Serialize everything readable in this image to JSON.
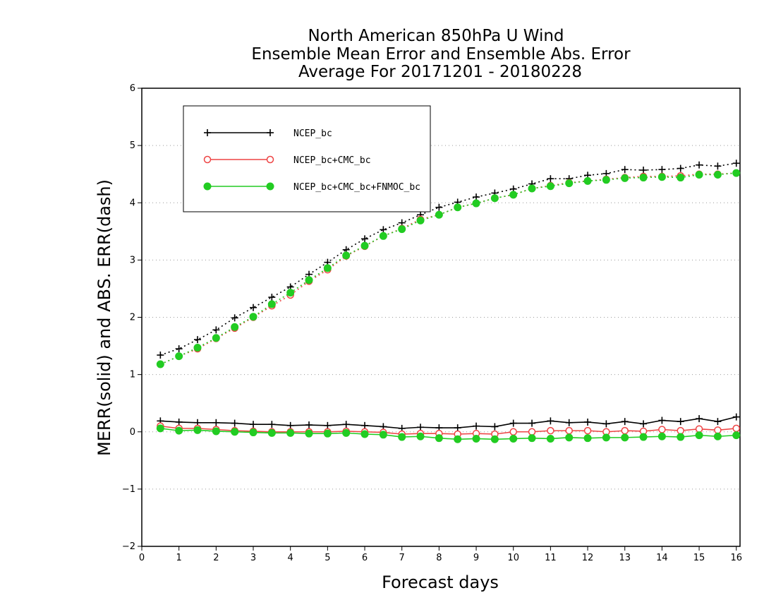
{
  "chart_data": {
    "type": "line",
    "title": [
      "North American 850hPa U Wind",
      "Ensemble Mean Error and Ensemble Abs. Error",
      "Average For 20171201 - 20180228"
    ],
    "xlabel": "Forecast days",
    "ylabel": "MERR(solid) and ABS. ERR(dash)",
    "xlim": [
      0,
      16.1
    ],
    "ylim": [
      -2,
      6
    ],
    "xticks": [
      0,
      1,
      2,
      3,
      4,
      5,
      6,
      7,
      8,
      9,
      10,
      11,
      12,
      13,
      14,
      15,
      16
    ],
    "yticks": [
      -2,
      -1,
      0,
      1,
      2,
      3,
      4,
      5,
      6
    ],
    "xtick_labels": [
      "0",
      "1",
      "2",
      "3",
      "4",
      "5",
      "6",
      "7",
      "8",
      "9",
      "10",
      "11",
      "12",
      "13",
      "14",
      "15",
      "16"
    ],
    "ytick_labels": [
      "−2",
      "−1",
      "0",
      "1",
      "2",
      "3",
      "4",
      "5",
      "6"
    ],
    "grid": "horizontal dotted",
    "legend_position": "top-left",
    "x": [
      0.5,
      1.0,
      1.5,
      2.0,
      2.5,
      3.0,
      3.5,
      4.0,
      4.5,
      5.0,
      5.5,
      6.0,
      6.5,
      7.0,
      7.5,
      8.0,
      8.5,
      9.0,
      9.5,
      10.0,
      10.5,
      11.0,
      11.5,
      12.0,
      12.5,
      13.0,
      13.5,
      14.0,
      14.5,
      15.0,
      15.5,
      16.0
    ],
    "series": [
      {
        "name": "NCEP_bc",
        "color": "#000000",
        "marker": "plus",
        "merr": [
          0.19,
          0.17,
          0.16,
          0.16,
          0.15,
          0.13,
          0.13,
          0.11,
          0.12,
          0.11,
          0.13,
          0.11,
          0.09,
          0.06,
          0.08,
          0.07,
          0.07,
          0.1,
          0.09,
          0.15,
          0.15,
          0.19,
          0.16,
          0.17,
          0.14,
          0.18,
          0.14,
          0.2,
          0.18,
          0.23,
          0.18,
          0.26
        ],
        "abs_err": [
          1.34,
          1.45,
          1.61,
          1.78,
          1.99,
          2.17,
          2.35,
          2.53,
          2.75,
          2.96,
          3.18,
          3.37,
          3.53,
          3.65,
          3.79,
          3.92,
          4.01,
          4.1,
          4.17,
          4.24,
          4.33,
          4.42,
          4.42,
          4.48,
          4.51,
          4.58,
          4.57,
          4.58,
          4.6,
          4.66,
          4.64,
          4.69
        ]
      },
      {
        "name": "NCEP_bc+CMC_bc",
        "color": "#ee4444",
        "marker": "open-circle",
        "merr": [
          0.1,
          0.06,
          0.06,
          0.04,
          0.02,
          0.01,
          0.0,
          0.0,
          0.0,
          0.0,
          0.01,
          0.0,
          -0.01,
          -0.04,
          -0.03,
          -0.03,
          -0.04,
          -0.03,
          -0.04,
          0.0,
          0.0,
          0.02,
          0.02,
          0.02,
          0.0,
          0.02,
          0.01,
          0.04,
          0.02,
          0.05,
          0.03,
          0.06
        ],
        "abs_err": [
          1.18,
          1.32,
          1.45,
          1.63,
          1.81,
          2.0,
          2.2,
          2.39,
          2.63,
          2.83,
          3.07,
          3.24,
          3.42,
          3.55,
          3.71,
          3.79,
          3.92,
          3.99,
          4.08,
          4.14,
          4.25,
          4.3,
          4.35,
          4.38,
          4.41,
          4.44,
          4.46,
          4.46,
          4.47,
          4.5,
          4.5,
          4.52
        ]
      },
      {
        "name": "NCEP_bc+CMC_bc+FNMOC_bc",
        "color": "#22cc22",
        "marker": "filled-circle",
        "merr": [
          0.06,
          0.02,
          0.03,
          0.01,
          0.0,
          -0.01,
          -0.02,
          -0.02,
          -0.03,
          -0.03,
          -0.02,
          -0.04,
          -0.05,
          -0.09,
          -0.08,
          -0.11,
          -0.13,
          -0.12,
          -0.13,
          -0.12,
          -0.11,
          -0.12,
          -0.1,
          -0.11,
          -0.1,
          -0.1,
          -0.09,
          -0.08,
          -0.09,
          -0.06,
          -0.08,
          -0.06
        ],
        "abs_err": [
          1.18,
          1.32,
          1.47,
          1.64,
          1.83,
          2.01,
          2.23,
          2.43,
          2.65,
          2.86,
          3.08,
          3.25,
          3.42,
          3.54,
          3.69,
          3.79,
          3.92,
          3.99,
          4.08,
          4.14,
          4.25,
          4.29,
          4.34,
          4.38,
          4.4,
          4.43,
          4.44,
          4.45,
          4.44,
          4.49,
          4.49,
          4.52
        ]
      }
    ]
  }
}
